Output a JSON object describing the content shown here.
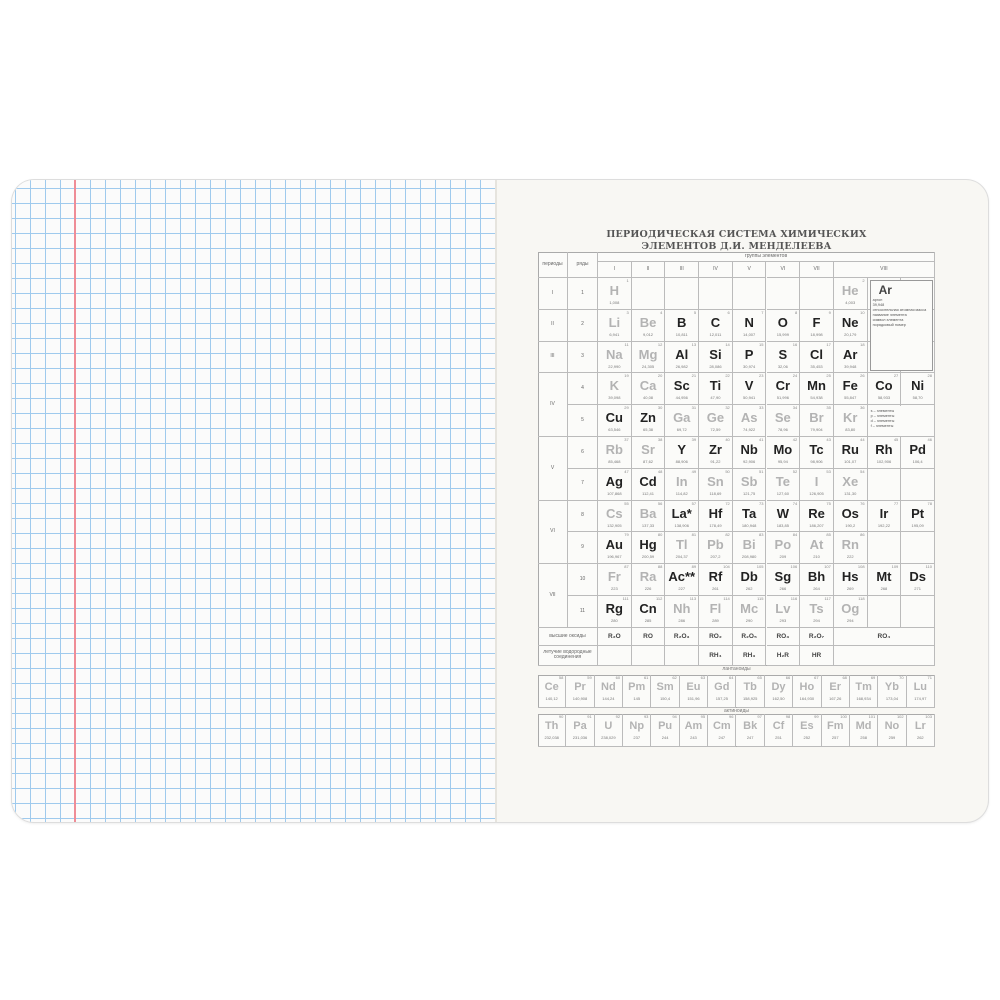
{
  "title_line1": "ПЕРИОДИЧЕСКАЯ СИСТЕМА ХИМИЧЕСКИХ",
  "title_line2": "ЭЛЕМЕНТОВ Д.И. МЕНДЕЛЕЕВА",
  "headers": {
    "periods": "периоды",
    "rows": "ряды",
    "groups": "группы элементов",
    "group_labels": [
      "I",
      "II",
      "III",
      "IV",
      "V",
      "VI",
      "VII",
      "VIII"
    ]
  },
  "period_labels": [
    "I",
    "II",
    "III",
    "IV",
    "V",
    "VI",
    "VII"
  ],
  "row_labels": [
    "1",
    "2",
    "3",
    "4",
    "5",
    "6",
    "7",
    "8",
    "9",
    "10",
    "11"
  ],
  "elements": [
    [
      "H",
      1,
      "1,008",
      0,
      0,
      "light"
    ],
    [
      "He",
      2,
      "4,003",
      0,
      7,
      "light"
    ],
    [
      "Li",
      3,
      "6,941",
      1,
      0,
      "light"
    ],
    [
      "Be",
      4,
      "9,012",
      1,
      1,
      "light"
    ],
    [
      "B",
      5,
      "10,811",
      1,
      2,
      "dark"
    ],
    [
      "C",
      6,
      "12,011",
      1,
      3,
      "dark"
    ],
    [
      "N",
      7,
      "14,007",
      1,
      4,
      "dark"
    ],
    [
      "O",
      8,
      "15,999",
      1,
      5,
      "dark"
    ],
    [
      "F",
      9,
      "18,998",
      1,
      6,
      "dark"
    ],
    [
      "Ne",
      10,
      "20,179",
      1,
      7,
      "dark"
    ],
    [
      "Na",
      11,
      "22,990",
      2,
      0,
      "light"
    ],
    [
      "Mg",
      12,
      "24,305",
      2,
      1,
      "light"
    ],
    [
      "Al",
      13,
      "26,982",
      2,
      2,
      "dark"
    ],
    [
      "Si",
      14,
      "28,086",
      2,
      3,
      "dark"
    ],
    [
      "P",
      15,
      "30,974",
      2,
      4,
      "dark"
    ],
    [
      "S",
      16,
      "32,06",
      2,
      5,
      "dark"
    ],
    [
      "Cl",
      17,
      "35,453",
      2,
      6,
      "dark"
    ],
    [
      "Ar",
      18,
      "39,948",
      2,
      7,
      "dark"
    ],
    [
      "K",
      19,
      "39,098",
      3,
      0,
      "light"
    ],
    [
      "Ca",
      20,
      "40,08",
      3,
      1,
      "light"
    ],
    [
      "Sc",
      21,
      "44,956",
      3,
      2,
      "dark"
    ],
    [
      "Ti",
      22,
      "47,90",
      3,
      3,
      "dark"
    ],
    [
      "V",
      23,
      "50,941",
      3,
      4,
      "dark"
    ],
    [
      "Cr",
      24,
      "51,996",
      3,
      5,
      "dark"
    ],
    [
      "Mn",
      25,
      "54,938",
      3,
      6,
      "dark"
    ],
    [
      "Fe",
      26,
      "55,847",
      3,
      7,
      "dark"
    ],
    [
      "Co",
      27,
      "58,933",
      3,
      8,
      "dark"
    ],
    [
      "Ni",
      28,
      "58,70",
      3,
      9,
      "dark"
    ],
    [
      "Cu",
      29,
      "63,546",
      4,
      0,
      "dark"
    ],
    [
      "Zn",
      30,
      "65,38",
      4,
      1,
      "dark"
    ],
    [
      "Ga",
      31,
      "69,72",
      4,
      2,
      "light"
    ],
    [
      "Ge",
      32,
      "72,59",
      4,
      3,
      "light"
    ],
    [
      "As",
      33,
      "74,922",
      4,
      4,
      "light"
    ],
    [
      "Se",
      34,
      "78,96",
      4,
      5,
      "light"
    ],
    [
      "Br",
      35,
      "79,904",
      4,
      6,
      "light"
    ],
    [
      "Kr",
      36,
      "83,80",
      4,
      7,
      "light"
    ],
    [
      "Rb",
      37,
      "85,468",
      5,
      0,
      "light"
    ],
    [
      "Sr",
      38,
      "87,62",
      5,
      1,
      "light"
    ],
    [
      "Y",
      39,
      "88,906",
      5,
      2,
      "dark"
    ],
    [
      "Zr",
      40,
      "91,22",
      5,
      3,
      "dark"
    ],
    [
      "Nb",
      41,
      "92,906",
      5,
      4,
      "dark"
    ],
    [
      "Mo",
      42,
      "95,94",
      5,
      5,
      "dark"
    ],
    [
      "Tc",
      43,
      "98,906",
      5,
      6,
      "dark"
    ],
    [
      "Ru",
      44,
      "101,07",
      5,
      7,
      "dark"
    ],
    [
      "Rh",
      45,
      "102,906",
      5,
      8,
      "dark"
    ],
    [
      "Pd",
      46,
      "106,4",
      5,
      9,
      "dark"
    ],
    [
      "Ag",
      47,
      "107,868",
      6,
      0,
      "dark"
    ],
    [
      "Cd",
      48,
      "112,41",
      6,
      1,
      "dark"
    ],
    [
      "In",
      49,
      "114,82",
      6,
      2,
      "light"
    ],
    [
      "Sn",
      50,
      "118,69",
      6,
      3,
      "light"
    ],
    [
      "Sb",
      51,
      "121,75",
      6,
      4,
      "light"
    ],
    [
      "Te",
      52,
      "127,60",
      6,
      5,
      "light"
    ],
    [
      "I",
      53,
      "126,905",
      6,
      6,
      "light"
    ],
    [
      "Xe",
      54,
      "131,30",
      6,
      7,
      "light"
    ],
    [
      "Cs",
      55,
      "132,905",
      7,
      0,
      "light"
    ],
    [
      "Ba",
      56,
      "137,33",
      7,
      1,
      "light"
    ],
    [
      "La*",
      57,
      "138,906",
      7,
      2,
      "dark"
    ],
    [
      "Hf",
      72,
      "178,49",
      7,
      3,
      "dark"
    ],
    [
      "Ta",
      73,
      "180,948",
      7,
      4,
      "dark"
    ],
    [
      "W",
      74,
      "183,85",
      7,
      5,
      "dark"
    ],
    [
      "Re",
      75,
      "186,207",
      7,
      6,
      "dark"
    ],
    [
      "Os",
      76,
      "190,2",
      7,
      7,
      "dark"
    ],
    [
      "Ir",
      77,
      "192,22",
      7,
      8,
      "dark"
    ],
    [
      "Pt",
      78,
      "195,09",
      7,
      9,
      "dark"
    ],
    [
      "Au",
      79,
      "196,967",
      8,
      0,
      "dark"
    ],
    [
      "Hg",
      80,
      "200,59",
      8,
      1,
      "dark"
    ],
    [
      "Tl",
      81,
      "204,37",
      8,
      2,
      "light"
    ],
    [
      "Pb",
      82,
      "207,2",
      8,
      3,
      "light"
    ],
    [
      "Bi",
      83,
      "208,980",
      8,
      4,
      "light"
    ],
    [
      "Po",
      84,
      "209",
      8,
      5,
      "light"
    ],
    [
      "At",
      85,
      "210",
      8,
      6,
      "light"
    ],
    [
      "Rn",
      86,
      "222",
      8,
      7,
      "light"
    ],
    [
      "Fr",
      87,
      "223",
      9,
      0,
      "light"
    ],
    [
      "Ra",
      88,
      "226",
      9,
      1,
      "light"
    ],
    [
      "Ac**",
      89,
      "227",
      9,
      2,
      "dark"
    ],
    [
      "Rf",
      104,
      "261",
      9,
      3,
      "dark"
    ],
    [
      "Db",
      105,
      "262",
      9,
      4,
      "dark"
    ],
    [
      "Sg",
      106,
      "266",
      9,
      5,
      "dark"
    ],
    [
      "Bh",
      107,
      "264",
      9,
      6,
      "dark"
    ],
    [
      "Hs",
      108,
      "269",
      9,
      7,
      "dark"
    ],
    [
      "Mt",
      109,
      "268",
      9,
      8,
      "dark"
    ],
    [
      "Ds",
      110,
      "271",
      9,
      9,
      "dark"
    ],
    [
      "Rg",
      111,
      "280",
      10,
      0,
      "dark"
    ],
    [
      "Cn",
      112,
      "285",
      10,
      1,
      "dark"
    ],
    [
      "Nh",
      113,
      "286",
      10,
      2,
      "light"
    ],
    [
      "Fl",
      114,
      "289",
      10,
      3,
      "light"
    ],
    [
      "Mc",
      115,
      "290",
      10,
      4,
      "light"
    ],
    [
      "Lv",
      116,
      "293",
      10,
      5,
      "light"
    ],
    [
      "Ts",
      117,
      "294",
      10,
      6,
      "light"
    ],
    [
      "Og",
      118,
      "294",
      10,
      7,
      "light"
    ]
  ],
  "oxides_label": "высшие оксиды",
  "oxides": [
    "R₂O",
    "RO",
    "R₂O₃",
    "RO₂",
    "R₂O₅",
    "RO₃",
    "R₂O₇",
    "RO₄"
  ],
  "hydrides_label": "летучие водородные соединения",
  "hydrides": [
    "",
    "",
    "",
    "RH₄",
    "RH₃",
    "H₂R",
    "HR",
    ""
  ],
  "lanthanides_label": "лантаноиды",
  "lanthanides": [
    [
      "Ce",
      58,
      "140,12"
    ],
    [
      "Pr",
      59,
      "140,908"
    ],
    [
      "Nd",
      60,
      "144,24"
    ],
    [
      "Pm",
      61,
      "145"
    ],
    [
      "Sm",
      62,
      "150,4"
    ],
    [
      "Eu",
      63,
      "151,96"
    ],
    [
      "Gd",
      64,
      "157,25"
    ],
    [
      "Tb",
      65,
      "158,925"
    ],
    [
      "Dy",
      66,
      "162,50"
    ],
    [
      "Ho",
      67,
      "164,930"
    ],
    [
      "Er",
      68,
      "167,26"
    ],
    [
      "Tm",
      69,
      "168,934"
    ],
    [
      "Yb",
      70,
      "173,04"
    ],
    [
      "Lu",
      71,
      "174,97"
    ]
  ],
  "actinides_label": "актиноиды",
  "actinides": [
    [
      "Th",
      90,
      "232,038"
    ],
    [
      "Pa",
      91,
      "231,036"
    ],
    [
      "U",
      92,
      "238,029"
    ],
    [
      "Np",
      93,
      "237"
    ],
    [
      "Pu",
      94,
      "244"
    ],
    [
      "Am",
      95,
      "243"
    ],
    [
      "Cm",
      96,
      "247"
    ],
    [
      "Bk",
      97,
      "247"
    ],
    [
      "Cf",
      98,
      "251"
    ],
    [
      "Es",
      99,
      "252"
    ],
    [
      "Fm",
      100,
      "257"
    ],
    [
      "Md",
      101,
      "258"
    ],
    [
      "No",
      102,
      "259"
    ],
    [
      "Lr",
      103,
      "262"
    ]
  ],
  "legend": {
    "symbol": "Ar",
    "name": "аргон",
    "mass": "39,948",
    "labels": [
      "относительная атомная масса",
      "название элемента",
      "символ элемента",
      "порядковый номер"
    ],
    "blocks": [
      "s – элементы",
      "p – элементы",
      "d – элементы",
      "f – элементы"
    ]
  },
  "colors": {
    "grid": "#9fcaed",
    "margin": "#ef8c96",
    "page": "#f8f7f3"
  }
}
